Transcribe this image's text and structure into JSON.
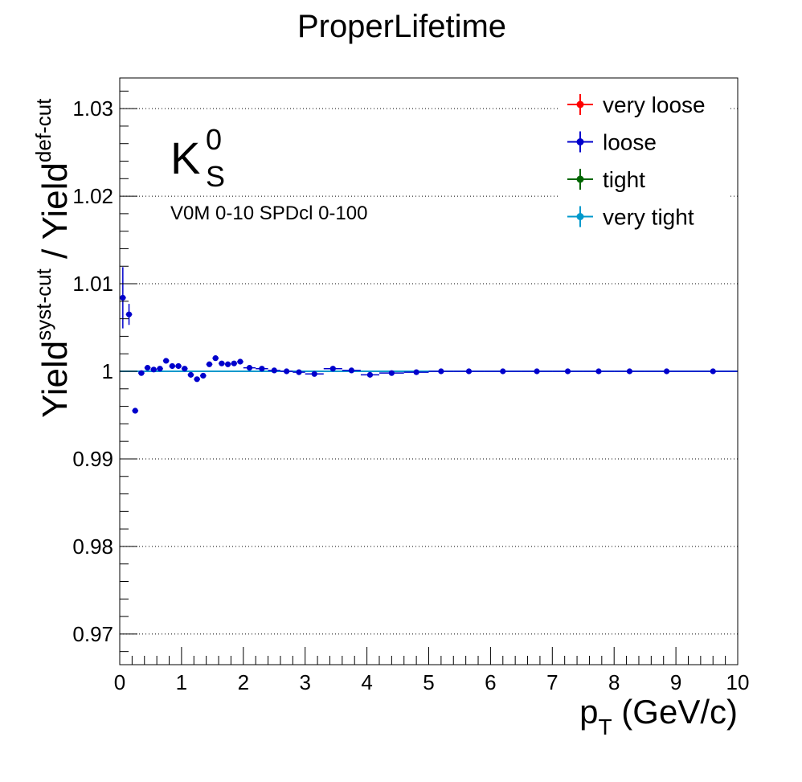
{
  "chart_data": {
    "type": "scatter",
    "title": "ProperLifetime",
    "xlabel": "p_T (GeV/c)",
    "ylabel": "Yield^syst-cut / Yield^def-cut",
    "xlim": [
      0,
      10
    ],
    "ylim": [
      0.9665,
      1.0335
    ],
    "x_ticks": [
      "0",
      "1",
      "2",
      "3",
      "4",
      "5",
      "6",
      "7",
      "8",
      "9",
      "10"
    ],
    "y_ticks": [
      "0.97",
      "0.98",
      "0.99",
      "1",
      "1.01",
      "1.02",
      "1.03"
    ],
    "grid": "y-dotted",
    "legend_position": "top-right",
    "annotation_particle": "K",
    "annotation_sup": "0",
    "annotation_sub": "S",
    "annotation_selection": "V0M 0-10 SPDcl 0-100",
    "series": [
      {
        "name": "very loose",
        "color": "#ff0000",
        "points": []
      },
      {
        "name": "loose",
        "color": "#0000cc",
        "points": [
          {
            "x": 0.05,
            "y": 1.0084,
            "ex": 0.05,
            "ey": 0.0035
          },
          {
            "x": 0.15,
            "y": 1.0065,
            "ex": 0.05,
            "ey": 0.0012
          },
          {
            "x": 0.25,
            "y": 0.9955,
            "ex": 0.05,
            "ey": 0.0003
          },
          {
            "x": 0.35,
            "y": 0.9998,
            "ex": 0.05,
            "ey": 0.0002
          },
          {
            "x": 0.45,
            "y": 1.0004,
            "ex": 0.05,
            "ey": 0.0002
          },
          {
            "x": 0.55,
            "y": 1.0002,
            "ex": 0.05,
            "ey": 0.0002
          },
          {
            "x": 0.65,
            "y": 1.0003,
            "ex": 0.05,
            "ey": 0.0002
          },
          {
            "x": 0.75,
            "y": 1.0012,
            "ex": 0.05,
            "ey": 0.0002
          },
          {
            "x": 0.85,
            "y": 1.0006,
            "ex": 0.05,
            "ey": 0.0002
          },
          {
            "x": 0.95,
            "y": 1.0006,
            "ex": 0.05,
            "ey": 0.0002
          },
          {
            "x": 1.05,
            "y": 1.0003,
            "ex": 0.05,
            "ey": 0.0002
          },
          {
            "x": 1.15,
            "y": 0.9996,
            "ex": 0.05,
            "ey": 0.0002
          },
          {
            "x": 1.25,
            "y": 0.9991,
            "ex": 0.05,
            "ey": 0.0002
          },
          {
            "x": 1.35,
            "y": 0.9995,
            "ex": 0.05,
            "ey": 0.0002
          },
          {
            "x": 1.45,
            "y": 1.0008,
            "ex": 0.05,
            "ey": 0.0002
          },
          {
            "x": 1.55,
            "y": 1.0015,
            "ex": 0.05,
            "ey": 0.0002
          },
          {
            "x": 1.65,
            "y": 1.0009,
            "ex": 0.05,
            "ey": 0.0002
          },
          {
            "x": 1.75,
            "y": 1.0008,
            "ex": 0.05,
            "ey": 0.0002
          },
          {
            "x": 1.85,
            "y": 1.0009,
            "ex": 0.05,
            "ey": 0.0002
          },
          {
            "x": 1.95,
            "y": 1.0011,
            "ex": 0.05,
            "ey": 0.0002
          },
          {
            "x": 2.1,
            "y": 1.0004,
            "ex": 0.1,
            "ey": 0.0002
          },
          {
            "x": 2.3,
            "y": 1.0003,
            "ex": 0.1,
            "ey": 0.0002
          },
          {
            "x": 2.5,
            "y": 1.0001,
            "ex": 0.1,
            "ey": 0.0002
          },
          {
            "x": 2.7,
            "y": 1.0,
            "ex": 0.1,
            "ey": 0.0002
          },
          {
            "x": 2.9,
            "y": 0.9999,
            "ex": 0.1,
            "ey": 0.0002
          },
          {
            "x": 3.15,
            "y": 0.9997,
            "ex": 0.15,
            "ey": 0.0002
          },
          {
            "x": 3.45,
            "y": 1.0003,
            "ex": 0.15,
            "ey": 0.0002
          },
          {
            "x": 3.75,
            "y": 1.0001,
            "ex": 0.15,
            "ey": 0.0002
          },
          {
            "x": 4.05,
            "y": 0.9996,
            "ex": 0.15,
            "ey": 0.0002
          },
          {
            "x": 4.4,
            "y": 0.9998,
            "ex": 0.2,
            "ey": 0.0002
          },
          {
            "x": 4.8,
            "y": 0.9999,
            "ex": 0.2,
            "ey": 0.0002
          },
          {
            "x": 5.2,
            "y": 1.0,
            "ex": 0.2,
            "ey": 0.0002
          },
          {
            "x": 5.65,
            "y": 1.0,
            "ex": 0.25,
            "ey": 0.0002
          },
          {
            "x": 6.2,
            "y": 1.0,
            "ex": 0.3,
            "ey": 0.0002
          },
          {
            "x": 6.75,
            "y": 1.0,
            "ex": 0.25,
            "ey": 0.0002
          },
          {
            "x": 7.25,
            "y": 1.0,
            "ex": 0.25,
            "ey": 0.0002
          },
          {
            "x": 7.75,
            "y": 1.0,
            "ex": 0.25,
            "ey": 0.0002
          },
          {
            "x": 8.25,
            "y": 1.0,
            "ex": 0.25,
            "ey": 0.0002
          },
          {
            "x": 8.85,
            "y": 1.0,
            "ex": 0.35,
            "ey": 0.0002
          },
          {
            "x": 9.6,
            "y": 1.0,
            "ex": 0.4,
            "ey": 0.0002
          }
        ]
      },
      {
        "name": "tight",
        "color": "#006600",
        "points": []
      },
      {
        "name": "very tight",
        "color": "#0099cc",
        "points": []
      }
    ],
    "reference_line": {
      "y": 1.0,
      "color": "#0099cc"
    }
  }
}
